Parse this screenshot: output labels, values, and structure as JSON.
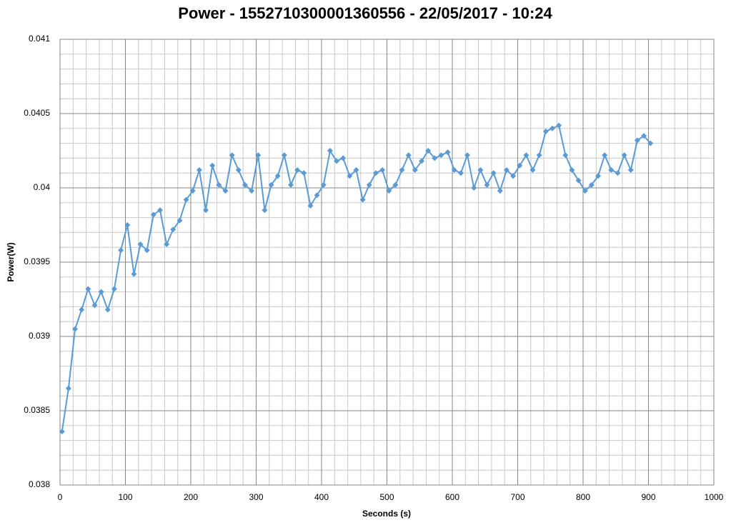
{
  "chart_data": {
    "type": "line",
    "title": "Power - 1552710300001360556 - 22/05/2017 - 10:24",
    "x_label": "Seconds (s)",
    "y_label": "Power(W)",
    "x": [
      3,
      13,
      23,
      33,
      43,
      53,
      63,
      73,
      83,
      93,
      103,
      113,
      123,
      133,
      143,
      153,
      163,
      173,
      183,
      193,
      203,
      213,
      223,
      233,
      243,
      253,
      263,
      273,
      283,
      293,
      303,
      313,
      323,
      333,
      343,
      353,
      363,
      373,
      383,
      393,
      403,
      413,
      423,
      433,
      443,
      453,
      463,
      473,
      483,
      493,
      503,
      513,
      523,
      533,
      543,
      553,
      563,
      573,
      583,
      593,
      603,
      613,
      623,
      633,
      643,
      653,
      663,
      673,
      683,
      693,
      703,
      713,
      723,
      733,
      743,
      753,
      763,
      773,
      783,
      793,
      803,
      813,
      823,
      833,
      843,
      853,
      863,
      873,
      883,
      893,
      903
    ],
    "series": [
      {
        "name": "Power",
        "color": "#5b9bd5",
        "values": [
          0.03836,
          0.03865,
          0.03905,
          0.03918,
          0.03932,
          0.03921,
          0.0393,
          0.03918,
          0.03932,
          0.03958,
          0.03975,
          0.03942,
          0.03962,
          0.03958,
          0.03982,
          0.03985,
          0.03962,
          0.03972,
          0.03978,
          0.03992,
          0.03998,
          0.04012,
          0.03985,
          0.04015,
          0.04002,
          0.03998,
          0.04022,
          0.04012,
          0.04002,
          0.03998,
          0.04022,
          0.03985,
          0.04002,
          0.04008,
          0.04022,
          0.04002,
          0.04012,
          0.0401,
          0.03988,
          0.03995,
          0.04002,
          0.04025,
          0.04018,
          0.0402,
          0.04008,
          0.04012,
          0.03992,
          0.04002,
          0.0401,
          0.04012,
          0.03998,
          0.04002,
          0.04012,
          0.04022,
          0.04012,
          0.04018,
          0.04025,
          0.0402,
          0.04022,
          0.04024,
          0.04012,
          0.0401,
          0.04022,
          0.04,
          0.04012,
          0.04002,
          0.0401,
          0.03998,
          0.04012,
          0.04008,
          0.04015,
          0.04022,
          0.04012,
          0.04022,
          0.04038,
          0.0404,
          0.04042,
          0.04022,
          0.04012,
          0.04005,
          0.03998,
          0.04002,
          0.04008,
          0.04022,
          0.04012,
          0.0401,
          0.04022,
          0.04012,
          0.04032,
          0.04035,
          0.0403
        ]
      }
    ],
    "xlim": [
      0,
      1000
    ],
    "xticks": [
      0,
      100,
      200,
      300,
      400,
      500,
      600,
      700,
      800,
      900,
      1000
    ],
    "ylim": [
      0.038,
      0.041
    ],
    "yticks": [
      0.038,
      0.0385,
      0.039,
      0.0395,
      0.04,
      0.0405,
      0.041
    ],
    "grid": true,
    "minor_grid": true
  }
}
